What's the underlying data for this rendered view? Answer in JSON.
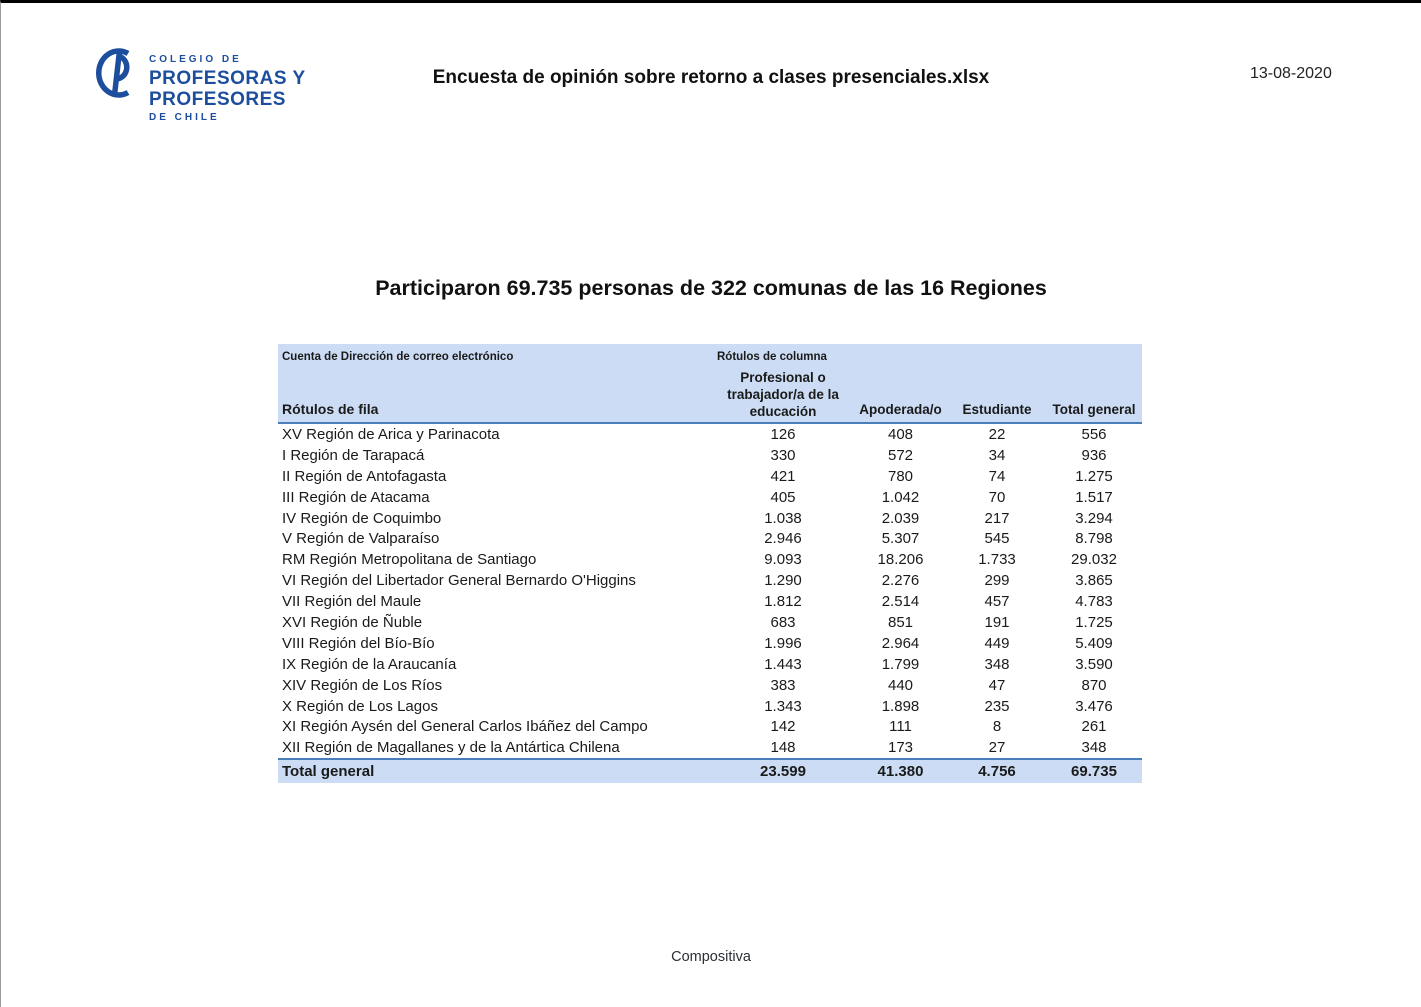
{
  "page": {
    "file_title": "Encuesta de opinión sobre retorno a clases presenciales.xlsx",
    "date": "13-08-2020",
    "heading": "Participaron 69.735 personas de 322 comunas de las 16 Regiones",
    "footer": "Compositiva"
  },
  "logo": {
    "line1": "COLEGIO DE",
    "line2": "PROFESORAS Y",
    "line3": "PROFESORES",
    "line4": "DE CHILE",
    "color": "#1d4e9e"
  },
  "colors": {
    "header_bg": "#cbdcf4",
    "accent_border": "#4a7ebb"
  },
  "pivot_table": {
    "filter_label": "Cuenta de Dirección de correo electrónico",
    "column_labels_label": "Rótulos de columna",
    "row_labels_label": "Rótulos de fila",
    "columns": [
      "Profesional o\ntrabajador/a de la\neducación",
      "Apoderada/o",
      "Estudiante",
      "Total general"
    ],
    "rows": [
      {
        "label": "XV Región de Arica y Parinacota",
        "values": [
          "126",
          "408",
          "22",
          "556"
        ]
      },
      {
        "label": "I Región de Tarapacá",
        "values": [
          "330",
          "572",
          "34",
          "936"
        ]
      },
      {
        "label": "II Región de Antofagasta",
        "values": [
          "421",
          "780",
          "74",
          "1.275"
        ]
      },
      {
        "label": "III Región de Atacama",
        "values": [
          "405",
          "1.042",
          "70",
          "1.517"
        ]
      },
      {
        "label": "IV Región de Coquimbo",
        "values": [
          "1.038",
          "2.039",
          "217",
          "3.294"
        ]
      },
      {
        "label": "V Región de Valparaíso",
        "values": [
          "2.946",
          "5.307",
          "545",
          "8.798"
        ]
      },
      {
        "label": "RM Región Metropolitana de Santiago",
        "values": [
          "9.093",
          "18.206",
          "1.733",
          "29.032"
        ]
      },
      {
        "label": "VI Región del Libertador General Bernardo O'Higgins",
        "values": [
          "1.290",
          "2.276",
          "299",
          "3.865"
        ]
      },
      {
        "label": "VII Región del Maule",
        "values": [
          "1.812",
          "2.514",
          "457",
          "4.783"
        ]
      },
      {
        "label": "XVI Región de Ñuble",
        "values": [
          "683",
          "851",
          "191",
          "1.725"
        ]
      },
      {
        "label": "VIII Región del Bío-Bío",
        "values": [
          "1.996",
          "2.964",
          "449",
          "5.409"
        ]
      },
      {
        "label": "IX Región de la Araucanía",
        "values": [
          "1.443",
          "1.799",
          "348",
          "3.590"
        ]
      },
      {
        "label": "XIV Región de Los Ríos",
        "values": [
          "383",
          "440",
          "47",
          "870"
        ]
      },
      {
        "label": "X Región de Los Lagos",
        "values": [
          "1.343",
          "1.898",
          "235",
          "3.476"
        ]
      },
      {
        "label": "XI Región Aysén del General Carlos Ibáñez del Campo",
        "values": [
          "142",
          "111",
          "8",
          "261"
        ]
      },
      {
        "label": "XII Región de Magallanes y de la Antártica Chilena",
        "values": [
          "148",
          "173",
          "27",
          "348"
        ]
      }
    ],
    "total": {
      "label": "Total general",
      "values": [
        "23.599",
        "41.380",
        "4.756",
        "69.735"
      ]
    }
  }
}
